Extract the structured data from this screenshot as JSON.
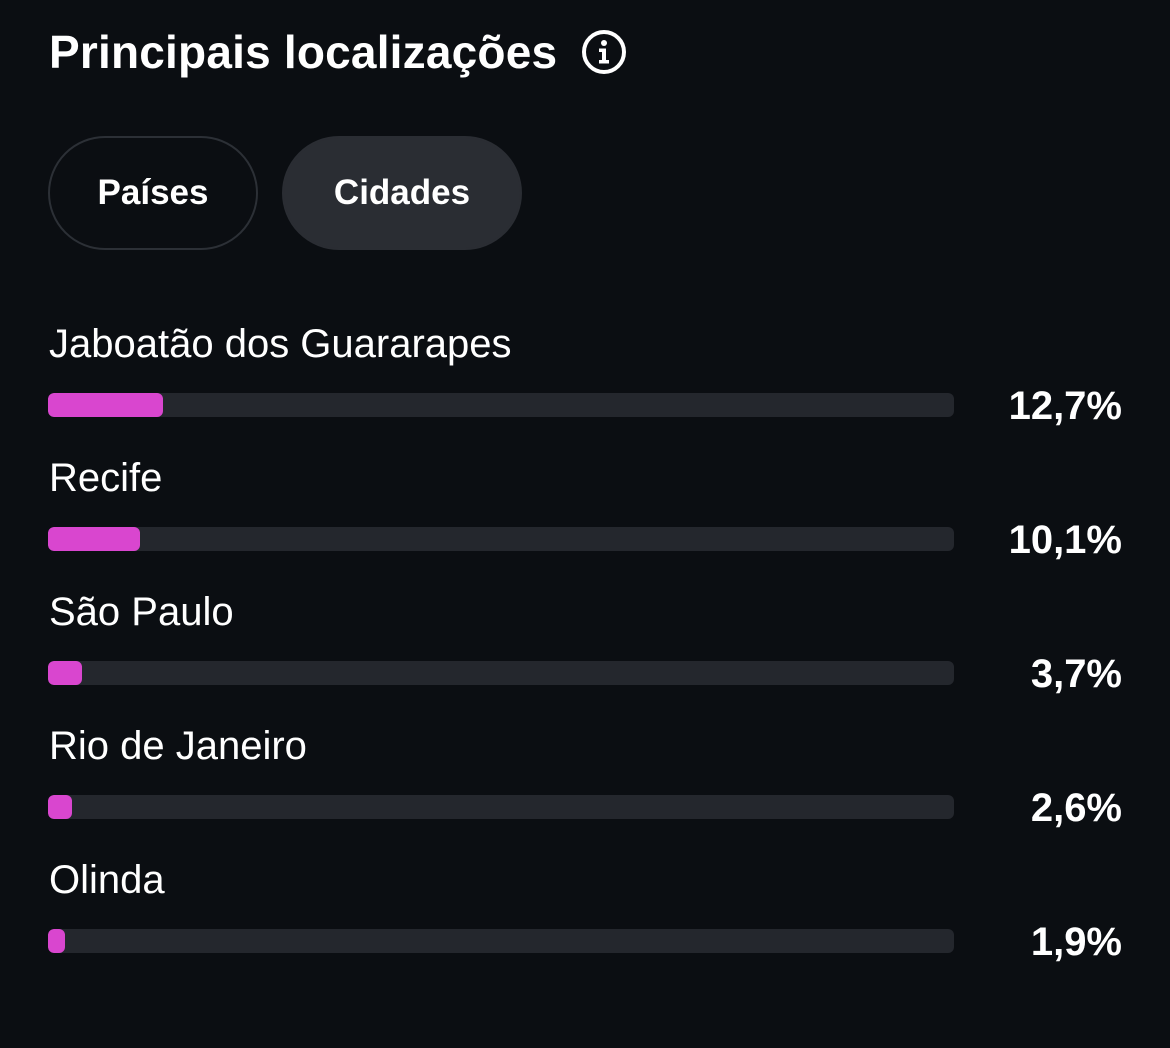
{
  "header": {
    "title": "Principais localizações",
    "info_icon": "info-circle-icon"
  },
  "tabs": [
    {
      "label": "Países",
      "active": false
    },
    {
      "label": "Cidades",
      "active": true
    }
  ],
  "colors": {
    "background": "#0b0e12",
    "bar_fill": "#d946cf",
    "bar_track": "#24272d",
    "active_tab": "#2a2d33"
  },
  "locations": [
    {
      "name": "Jaboatão dos Guararapes",
      "percent_label": "12,7%",
      "percent": 12.7
    },
    {
      "name": "Recife",
      "percent_label": "10,1%",
      "percent": 10.1
    },
    {
      "name": "São Paulo",
      "percent_label": "3,7%",
      "percent": 3.7
    },
    {
      "name": "Rio de Janeiro",
      "percent_label": "2,6%",
      "percent": 2.6
    },
    {
      "name": "Olinda",
      "percent_label": "1,9%",
      "percent": 1.9
    }
  ]
}
